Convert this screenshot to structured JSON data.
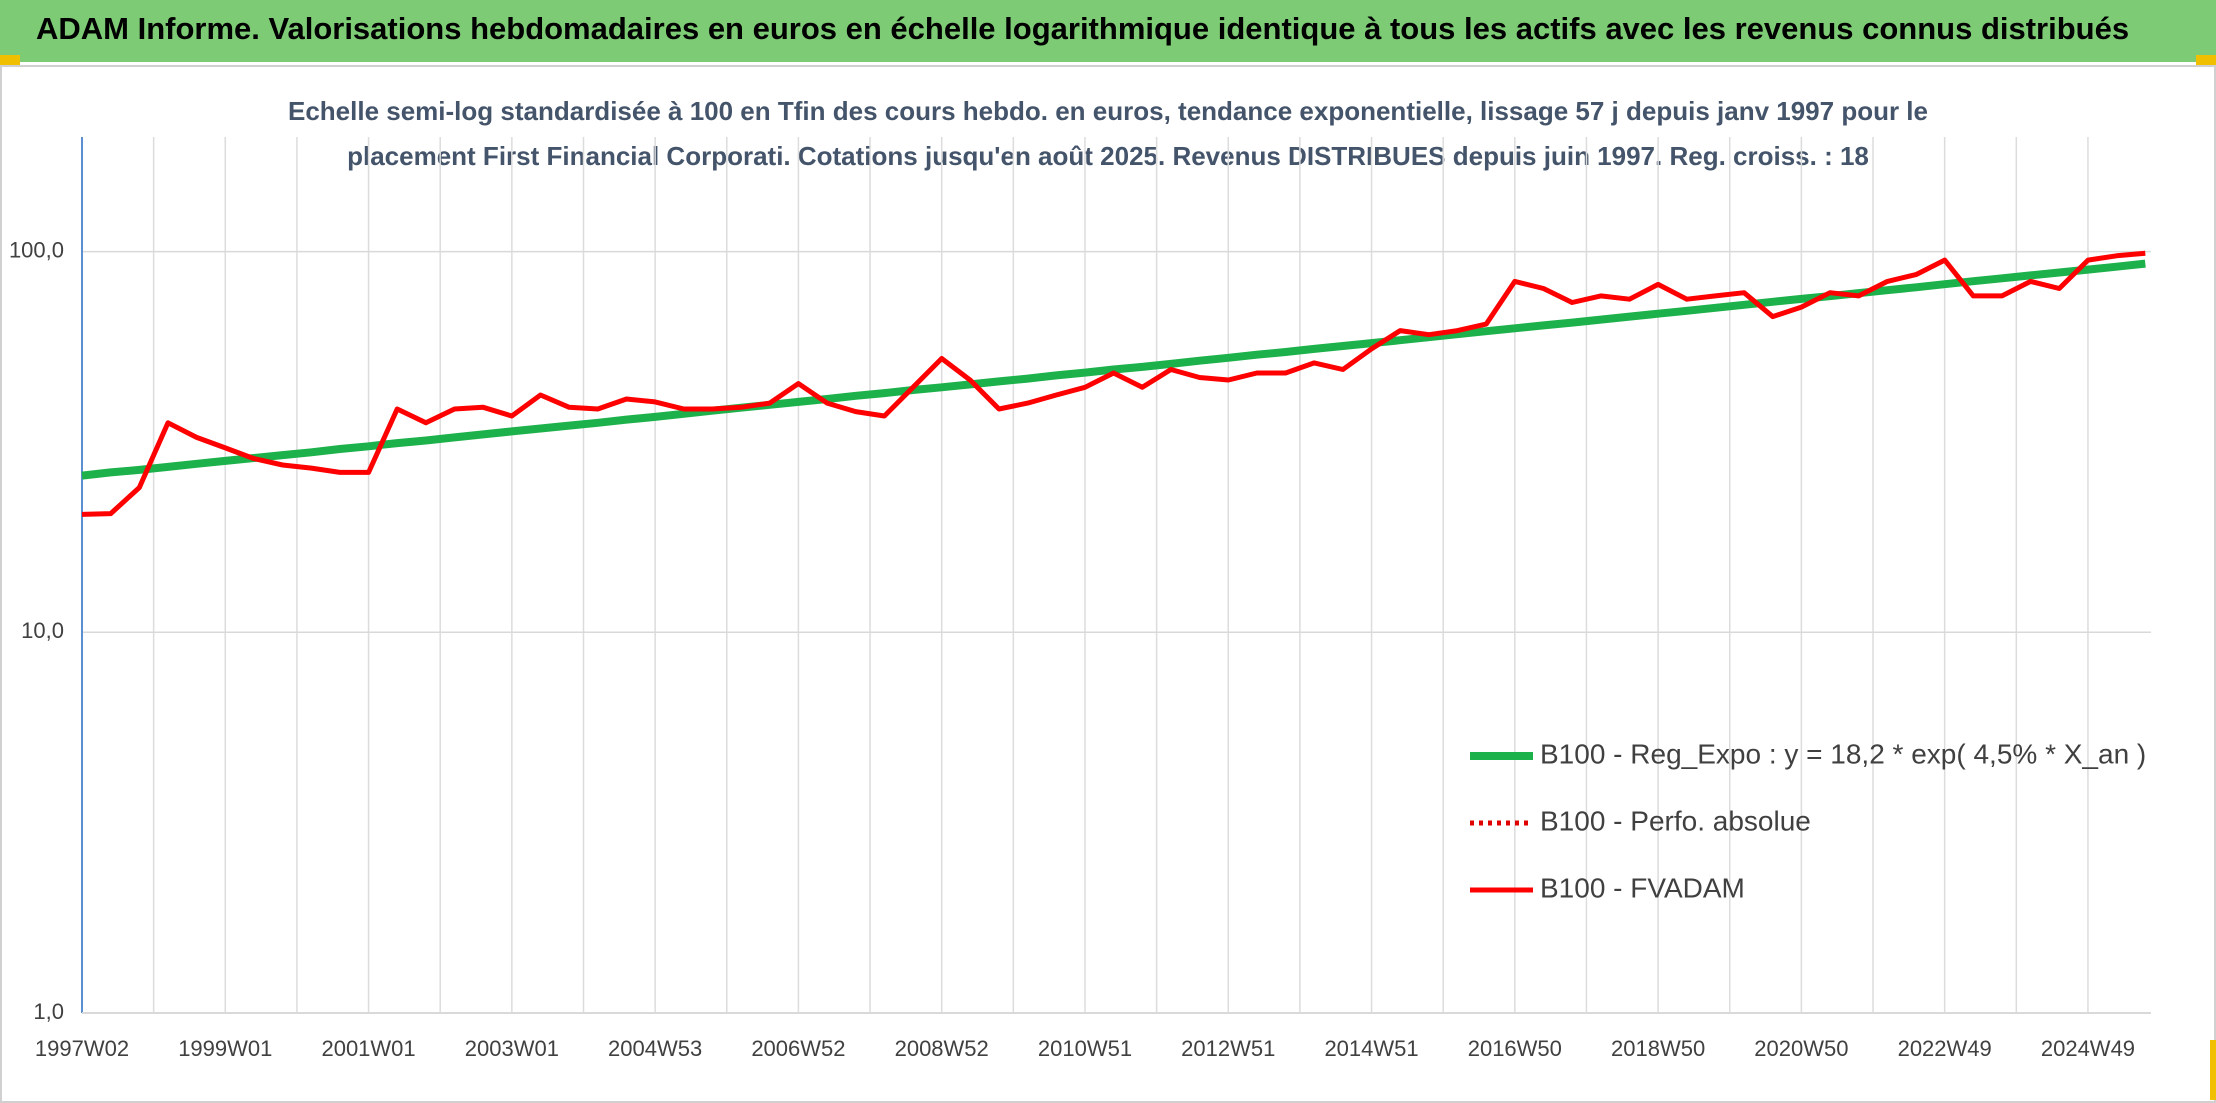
{
  "header": {
    "title": "ADAM Informe. Valorisations hebdomadaires en euros en échelle logarithmique identique à tous les actifs avec les revenus connus distribués"
  },
  "chart_data": {
    "type": "line",
    "subtitle_lines": [
      "Echelle semi-log standardisée à 100 en Tfin des cours hebdo. en euros, tendance exponentielle, lissage 57 j depuis janv 1997 pour le",
      "placement First Financial Corporati. Cotations jusqu'en août 2025. Revenus DISTRIBUES depuis juin 1997. Reg. croiss. : 18"
    ],
    "categories": [
      "1997W02",
      null,
      null,
      null,
      null,
      "1999W01",
      null,
      null,
      null,
      null,
      "2001W01",
      null,
      null,
      null,
      null,
      "2003W01",
      null,
      null,
      null,
      null,
      "2004W53",
      null,
      null,
      null,
      null,
      "2006W52",
      null,
      null,
      null,
      null,
      "2008W52",
      null,
      null,
      null,
      null,
      "2010W51",
      null,
      null,
      null,
      null,
      "2012W51",
      null,
      null,
      null,
      null,
      "2014W51",
      null,
      null,
      null,
      null,
      "2016W50",
      null,
      null,
      null,
      null,
      "2018W50",
      null,
      null,
      null,
      null,
      "2020W50",
      null,
      null,
      null,
      null,
      "2022W49",
      null,
      null,
      null,
      null,
      "2024W49",
      null,
      null
    ],
    "series": [
      {
        "name": "B100 - Reg_Expo : y = 18,2 * exp( 4,5% *  X_an )",
        "color": "#1db14b",
        "style": "solid",
        "values": [
          25.8,
          26.3,
          26.7,
          27.2,
          27.7,
          28.2,
          28.7,
          29.2,
          29.7,
          30.3,
          30.8,
          31.4,
          31.9,
          32.5,
          33.1,
          33.7,
          34.3,
          34.9,
          35.5,
          36.2,
          36.8,
          37.5,
          38.2,
          38.9,
          39.6,
          40.3,
          41.0,
          41.8,
          42.5,
          43.3,
          44.0,
          44.8,
          45.6,
          46.4,
          47.3,
          48.1,
          49.0,
          49.8,
          50.7,
          51.7,
          52.6,
          53.6,
          54.5,
          55.5,
          56.5,
          57.5,
          58.5,
          59.6,
          60.7,
          61.8,
          62.9,
          64.0,
          65.1,
          66.3,
          67.5,
          68.7,
          69.9,
          71.2,
          72.5,
          73.8,
          75.1,
          76.4,
          77.8,
          79.2,
          80.6,
          82.1,
          83.6,
          85.1,
          86.6,
          88.1,
          89.7,
          91.3,
          93.0
        ]
      },
      {
        "name": "B100 - Perfo. absolue",
        "color": "#e00000",
        "style": "dotted",
        "values": [
          20.4,
          20.5,
          24,
          35.5,
          32.5,
          30.5,
          28.6,
          27.5,
          27,
          26.3,
          26.3,
          38.6,
          35.5,
          38.6,
          39,
          37,
          42,
          39,
          38.6,
          41,
          40.3,
          38.6,
          38.6,
          39,
          40,
          45,
          40,
          38,
          37,
          44,
          52.4,
          45.9,
          38.6,
          40,
          42,
          44,
          48,
          44,
          49,
          46.7,
          46,
          48,
          48,
          51,
          49,
          55.5,
          62,
          60.5,
          62,
          64.5,
          83.5,
          80,
          73.5,
          76.5,
          75,
          82,
          75,
          76.5,
          78,
          67.5,
          71.5,
          78,
          76.5,
          83.5,
          87,
          95,
          76.5,
          76.5,
          83.5,
          80,
          95,
          97.5,
          99
        ]
      },
      {
        "name": "B100 - FVADAM",
        "color": "#ff0000",
        "style": "solid",
        "values": [
          20.4,
          20.5,
          24,
          35.5,
          32.5,
          30.5,
          28.6,
          27.5,
          27,
          26.3,
          26.3,
          38.6,
          35.5,
          38.6,
          39,
          37,
          42,
          39,
          38.6,
          41,
          40.3,
          38.6,
          38.6,
          39,
          40,
          45,
          40,
          38,
          37,
          44,
          52.4,
          45.9,
          38.6,
          40,
          42,
          44,
          48,
          44,
          49,
          46.7,
          46,
          48,
          48,
          51,
          49,
          55.5,
          62,
          60.5,
          62,
          64.5,
          83.5,
          80,
          73.5,
          76.5,
          75,
          82,
          75,
          76.5,
          78,
          67.5,
          71.5,
          78,
          76.5,
          83.5,
          87,
          95,
          76.5,
          76.5,
          83.5,
          80,
          95,
          97.5,
          99
        ]
      }
    ],
    "ylim": [
      1,
      200
    ],
    "log_scale": true,
    "grid": true,
    "yticks": [
      {
        "value": 1,
        "label": "1,0"
      },
      {
        "value": 10,
        "label": "10,0"
      },
      {
        "value": 100,
        "label": "100,0"
      }
    ]
  }
}
